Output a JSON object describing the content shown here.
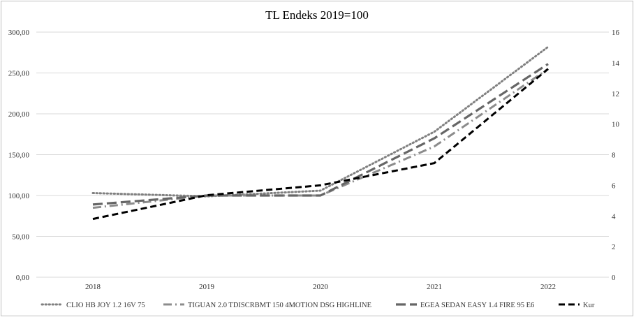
{
  "chart_data": {
    "type": "line",
    "title": "TL Endeks 2019=100",
    "categories": [
      "2018",
      "2019",
      "2020",
      "2021",
      "2022"
    ],
    "y_left": {
      "min": 0,
      "max": 300,
      "step": 50,
      "tick_labels": [
        "0,00",
        "50,00",
        "100,00",
        "150,00",
        "200,00",
        "250,00",
        "300,00"
      ]
    },
    "y_right": {
      "min": 0,
      "max": 16,
      "step": 2,
      "tick_labels": [
        "0",
        "2",
        "4",
        "6",
        "8",
        "10",
        "12",
        "14",
        "16"
      ]
    },
    "grid": true,
    "legend_position": "bottom",
    "series": [
      {
        "name": "CLIO HB JOY 1.2 16V 75",
        "axis": "left",
        "style": "dotted",
        "color": "#808080",
        "values": [
          103,
          99,
          106,
          178,
          282
        ]
      },
      {
        "name": "TIGUAN 2.0 TDISCRBMT 150 4MOTION DSG HIGHLINE",
        "axis": "left",
        "style": "dashdot",
        "color": "#8c8c8c",
        "values": [
          85,
          100,
          100,
          160,
          255
        ]
      },
      {
        "name": "EGEA SEDAN EASY 1.4 FIRE 95 E6",
        "axis": "left",
        "style": "dash",
        "color": "#666666",
        "values": [
          89,
          100,
          100,
          170,
          261
        ]
      },
      {
        "name": "Kur",
        "axis": "right",
        "style": "dash-bold",
        "color": "#000000",
        "values": [
          3.8,
          5.35,
          6.0,
          7.45,
          13.6
        ]
      }
    ]
  }
}
